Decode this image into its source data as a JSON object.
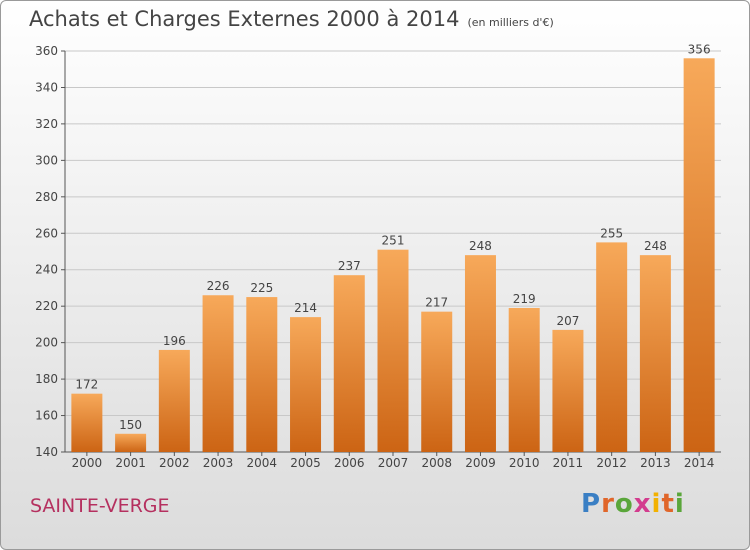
{
  "title": "Achats et Charges Externes 2000 à 2014",
  "unit": "(en milliers d'€)",
  "commune": "SAINTE-VERGE",
  "brand": "Proxiti",
  "colors": {
    "bar_top": "#f7a95a",
    "bar_bottom": "#cc6414",
    "commune": "#b5305f",
    "grid": "#c8c8c8"
  },
  "chart_data": {
    "type": "bar",
    "categories": [
      "2000",
      "2001",
      "2002",
      "2003",
      "2004",
      "2005",
      "2006",
      "2007",
      "2008",
      "2009",
      "2010",
      "2011",
      "2012",
      "2013",
      "2014"
    ],
    "values": [
      172,
      150,
      196,
      226,
      225,
      214,
      237,
      251,
      217,
      248,
      219,
      207,
      255,
      248,
      356
    ],
    "ylim": [
      140,
      360
    ],
    "yticks": [
      140,
      160,
      180,
      200,
      220,
      240,
      260,
      280,
      300,
      320,
      340,
      360
    ],
    "grid": true,
    "xlabel": "",
    "ylabel": ""
  }
}
